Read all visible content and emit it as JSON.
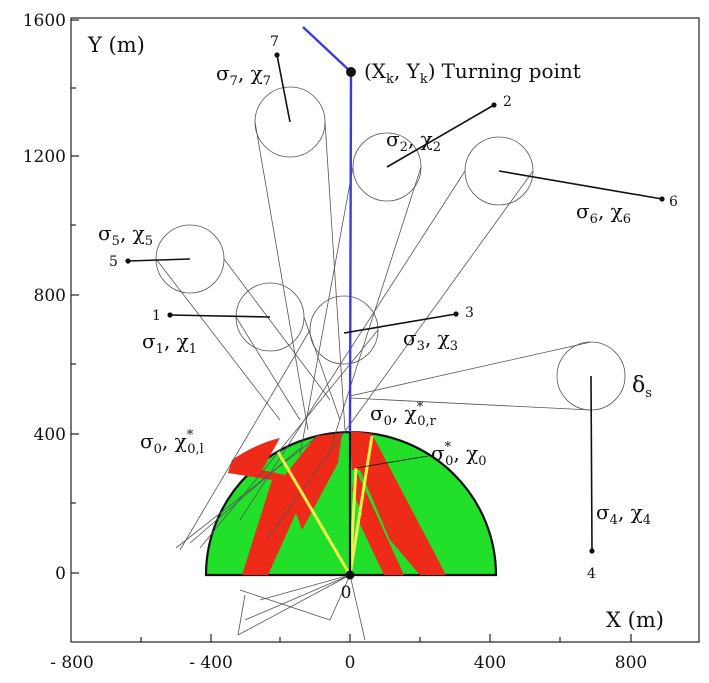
{
  "axes": {
    "x_label": "X (m)",
    "y_label": "Y (m)",
    "x_ticks": [
      "- 800",
      "- 400",
      "0",
      "400",
      "800"
    ],
    "y_ticks": [
      "1600",
      "1200",
      "800",
      "400",
      "0"
    ],
    "origin_label": "0"
  },
  "turning_point": {
    "main": "(X",
    "k": "k",
    "sep": ", Y",
    "close": ")",
    "text": "Turning point"
  },
  "lines": [
    {
      "id": "7",
      "number": "7",
      "sigma": "σ",
      "sigma_sub": "7",
      "sep": ", χ",
      "chi_sub": "7"
    },
    {
      "id": "2",
      "number": "2",
      "sigma": "σ",
      "sigma_sub": "2",
      "sep": ", χ",
      "chi_sub": "2"
    },
    {
      "id": "6",
      "number": "6",
      "sigma": "σ",
      "sigma_sub": "6",
      "sep": ", χ",
      "chi_sub": "6"
    },
    {
      "id": "5",
      "number": "5",
      "sigma": "σ",
      "sigma_sub": "5",
      "sep": ", χ",
      "chi_sub": "5"
    },
    {
      "id": "1",
      "number": "1",
      "sigma": "σ",
      "sigma_sub": "1",
      "sep": ", χ",
      "chi_sub": "1"
    },
    {
      "id": "3",
      "number": "3",
      "sigma": "σ",
      "sigma_sub": "3",
      "sep": ", χ",
      "chi_sub": "3"
    },
    {
      "id": "4",
      "number": "4",
      "sigma": "σ",
      "sigma_sub": "4",
      "sep": ", χ",
      "chi_sub": "4"
    }
  ],
  "labels": {
    "delta_s": "δ",
    "delta_s_sub": "s",
    "left_bound": {
      "sigma": "σ",
      "sigma_sub": "0",
      "sep": ", χ",
      "chi_sup": "*",
      "chi_sub": "0,l"
    },
    "right_bound": {
      "sigma": "σ",
      "sigma_sub": "0",
      "sep": ", χ",
      "chi_sup": "*",
      "chi_sub": "0,r"
    },
    "center": {
      "sigma": "σ",
      "sigma_sup": "*",
      "sigma_sub": "0",
      "sep": ", χ",
      "chi_sub": "0"
    }
  },
  "colors": {
    "safe": "#22e02a",
    "danger": "#ee2a18",
    "trajectory": "#3b3bdf",
    "yellow": "#f2f04a",
    "ink": "#111111"
  }
}
